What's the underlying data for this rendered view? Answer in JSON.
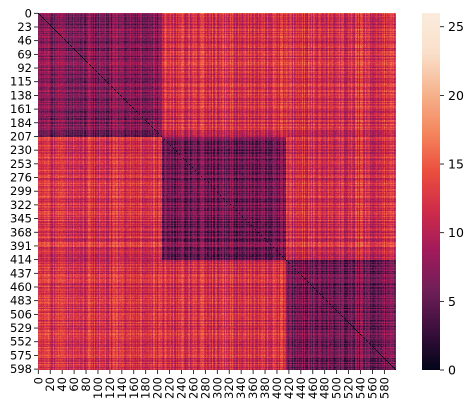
{
  "chart_data": {
    "type": "heatmap",
    "title": "",
    "xlabel": "",
    "ylabel": "",
    "n_rows": 600,
    "n_cols": 600,
    "y_tick_labels": [
      "0",
      "23",
      "46",
      "69",
      "92",
      "115",
      "138",
      "161",
      "184",
      "207",
      "230",
      "253",
      "276",
      "299",
      "322",
      "345",
      "368",
      "391",
      "414",
      "437",
      "460",
      "483",
      "506",
      "529",
      "552",
      "575",
      "598"
    ],
    "x_tick_labels": [
      "0",
      "20",
      "40",
      "60",
      "80",
      "100",
      "120",
      "140",
      "160",
      "180",
      "200",
      "220",
      "240",
      "260",
      "280",
      "300",
      "320",
      "340",
      "360",
      "380",
      "400",
      "420",
      "440",
      "460",
      "480",
      "500",
      "520",
      "540",
      "560",
      "580"
    ],
    "blocks": [
      {
        "rows": [
          0,
          207
        ],
        "cols": [
          0,
          207
        ],
        "level": 6.5
      },
      {
        "rows": [
          207,
          414
        ],
        "cols": [
          207,
          414
        ],
        "level": 6.0
      },
      {
        "rows": [
          414,
          600
        ],
        "cols": [
          414,
          600
        ],
        "level": 6.0
      }
    ],
    "off_block_level": 12.0,
    "noise_amplitude": 3.0,
    "colorbar": {
      "min": 0,
      "max": 26,
      "tick_values": [
        0,
        5,
        10,
        15,
        20,
        25
      ],
      "tick_labels": [
        "0",
        "5",
        "10",
        "15",
        "20",
        "25"
      ],
      "colormap": "rocket",
      "colors": [
        "#03051a",
        "#3b0f3d",
        "#701f57",
        "#a11a5b",
        "#cf2c4a",
        "#ec4e3e",
        "#f4875e",
        "#f6b48e",
        "#fae0cb",
        "#faebdd"
      ]
    }
  }
}
